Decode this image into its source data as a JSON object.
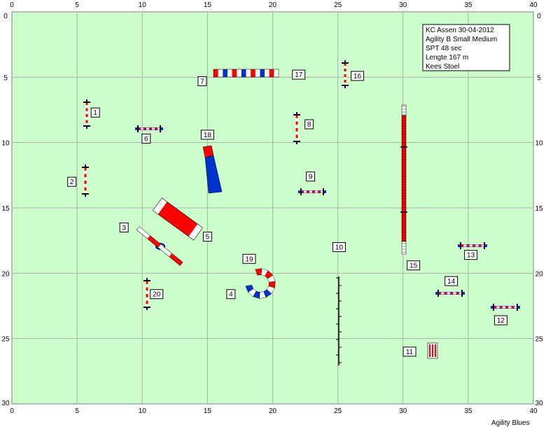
{
  "course": {
    "info_lines": [
      "KC Assen 30-04-2012",
      "Agility B Small Medium",
      "SPT 48 sec",
      "Lengte 167 m",
      "Kees Stoel"
    ],
    "brand": "Agility Blues"
  },
  "axes": {
    "x_ticks": [
      "0",
      "5",
      "10",
      "15",
      "20",
      "25",
      "30",
      "35",
      "40"
    ],
    "y_ticks": [
      "0",
      "5",
      "10",
      "15",
      "20",
      "25",
      "30"
    ],
    "x_range": [
      0,
      40
    ],
    "y_range": [
      0,
      30
    ]
  },
  "colors": {
    "field": "#ccffcc",
    "grid": "#a8b0a8",
    "red": "#ff0000",
    "blue": "#0033cc",
    "white": "#ffffff",
    "dark_blue": "#000080"
  },
  "numbers": [
    {
      "label": "1",
      "x": 6.4,
      "y": 7.7
    },
    {
      "label": "2",
      "x": 4.6,
      "y": 13.0
    },
    {
      "label": "3",
      "x": 8.6,
      "y": 16.5
    },
    {
      "label": "4",
      "x": 16.8,
      "y": 21.6
    },
    {
      "label": "5",
      "x": 15.0,
      "y": 17.2
    },
    {
      "label": "6",
      "x": 10.3,
      "y": 9.7
    },
    {
      "label": "7",
      "x": 14.6,
      "y": 5.3
    },
    {
      "label": "8",
      "x": 22.8,
      "y": 8.6
    },
    {
      "label": "9",
      "x": 22.9,
      "y": 12.6
    },
    {
      "label": "10",
      "x": 25.1,
      "y": 18.0
    },
    {
      "label": "11",
      "x": 30.5,
      "y": 26.0
    },
    {
      "label": "12",
      "x": 37.5,
      "y": 23.6
    },
    {
      "label": "13",
      "x": 35.2,
      "y": 18.6
    },
    {
      "label": "14",
      "x": 33.7,
      "y": 20.6
    },
    {
      "label": "15",
      "x": 30.8,
      "y": 19.4
    },
    {
      "label": "16",
      "x": 26.5,
      "y": 4.9
    },
    {
      "label": "17",
      "x": 22.0,
      "y": 4.8
    },
    {
      "label": "18",
      "x": 15.0,
      "y": 9.4
    },
    {
      "label": "19",
      "x": 18.2,
      "y": 18.9
    },
    {
      "label": "20",
      "x": 11.1,
      "y": 21.6
    }
  ]
}
